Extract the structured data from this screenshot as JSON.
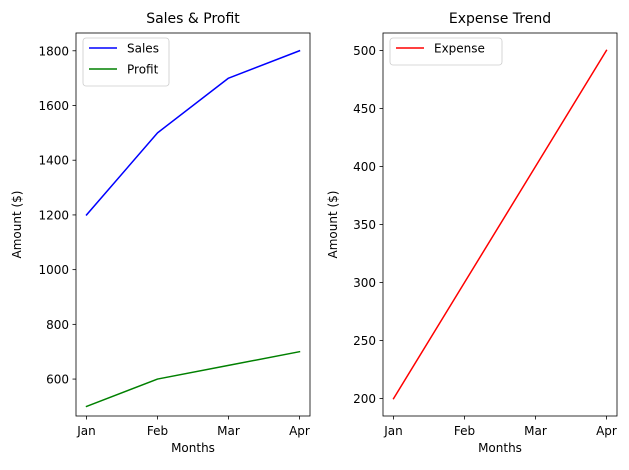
{
  "chart_data": [
    {
      "type": "line",
      "title": "Sales & Profit",
      "xlabel": "Months",
      "ylabel": "Amount ($)",
      "categories": [
        "Jan",
        "Feb",
        "Mar",
        "Apr"
      ],
      "yticks": [
        600,
        800,
        1000,
        1200,
        1400,
        1600,
        1800
      ],
      "ylim": [
        465,
        1865
      ],
      "legend": "upper-left",
      "grid": false,
      "series": [
        {
          "name": "Sales",
          "color": "#0000ff",
          "values": [
            1200,
            1500,
            1700,
            1800
          ]
        },
        {
          "name": "Profit",
          "color": "#008000",
          "values": [
            500,
            600,
            650,
            700
          ]
        }
      ]
    },
    {
      "type": "line",
      "title": "Expense Trend",
      "xlabel": "Months",
      "ylabel": "Amount ($)",
      "categories": [
        "Jan",
        "Feb",
        "Mar",
        "Apr"
      ],
      "yticks": [
        200,
        250,
        300,
        350,
        400,
        450,
        500
      ],
      "ylim": [
        185,
        515
      ],
      "legend": "upper-left",
      "grid": false,
      "series": [
        {
          "name": "Expense",
          "color": "#ff0000",
          "values": [
            200,
            300,
            400,
            500
          ]
        }
      ]
    }
  ]
}
